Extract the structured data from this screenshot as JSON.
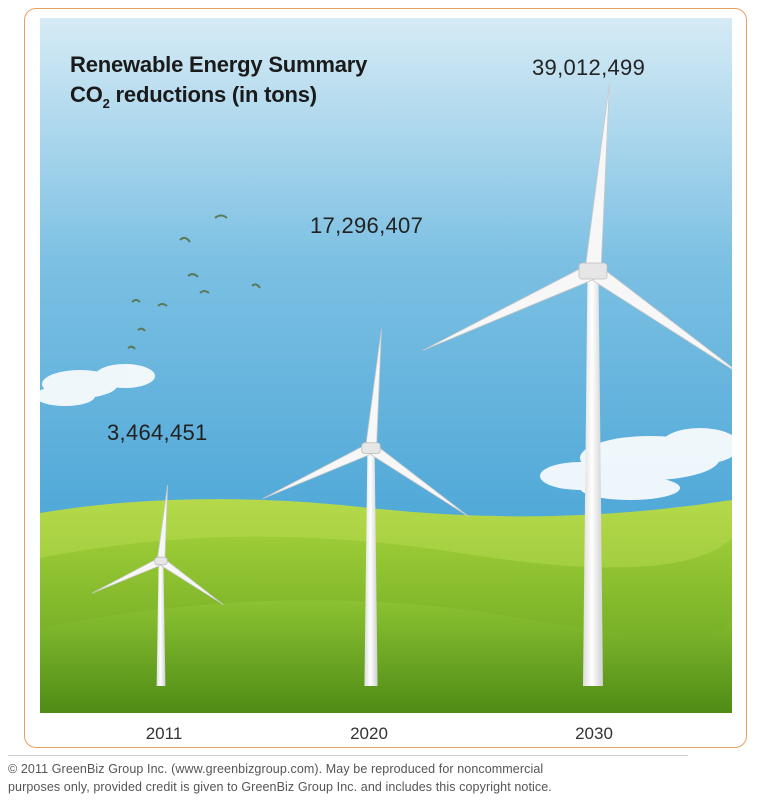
{
  "chart_data": {
    "type": "bar",
    "title_line1": "Renewable Energy Summary",
    "title_line2_prefix": "CO",
    "title_line2_sub": "2",
    "title_line2_suffix": " reductions (in tons)",
    "categories": [
      "2011",
      "2020",
      "2030"
    ],
    "values": [
      3464451,
      17296407,
      39012499
    ],
    "value_labels": [
      "3,464,451",
      "17,296,407",
      "39,012,499"
    ],
    "marker": "wind-turbine"
  },
  "colors": {
    "sky_top": "#d4eaf4",
    "sky_bottom": "#3b9fd4",
    "grass_light": "#a6cf3a",
    "grass_dark": "#5f9e1e",
    "frame": "#e8a060",
    "turbine": "#f4f4f4"
  },
  "copyright_line1": "© 2011 GreenBiz Group Inc. (www.greenbizgroup.com).  May be reproduced for noncommercial",
  "copyright_line2": "purposes only, provided credit is given to GreenBiz Group Inc. and includes this copyright notice."
}
